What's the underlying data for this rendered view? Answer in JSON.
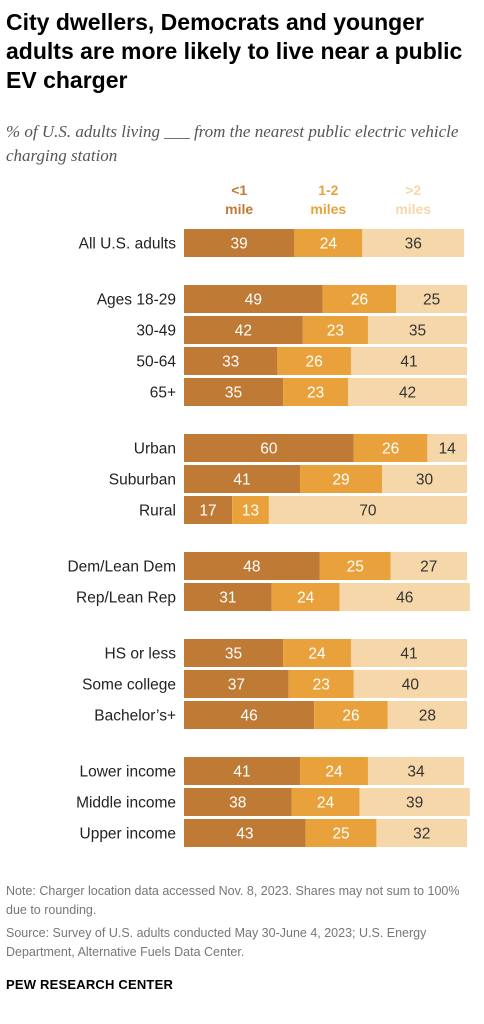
{
  "title": "City dwellers, Democrats and younger adults are more likely to live near a public EV charger",
  "subtitle": "% of U.S. adults living ___ from the nearest public electric vehicle charging station",
  "note": "Note: Charger location data accessed Nov. 8, 2023. Shares may not sum to 100% due to rounding.",
  "source": "Source: Survey of U.S. adults conducted May 30-June 4, 2023; U.S. Energy Department, Alternative Fuels Data Center.",
  "brand": "PEW RESEARCH CENTER",
  "chart_data": {
    "type": "bar",
    "orientation": "horizontal",
    "stacked": true,
    "xlim": [
      0,
      100
    ],
    "grid": false,
    "legend_placement": "top",
    "series": [
      {
        "name": "<1 mile",
        "legend_lines": [
          "<1",
          "mile"
        ],
        "color": "#bf7a35",
        "label_color": "#ffffff"
      },
      {
        "name": "1-2 miles",
        "legend_lines": [
          "1-2",
          "miles"
        ],
        "color": "#e9a23b",
        "label_color": "#ffffff"
      },
      {
        "name": ">2 miles",
        "legend_lines": [
          ">2",
          "miles"
        ],
        "color": "#f6d7a9",
        "label_color": "#333333"
      }
    ],
    "groups": [
      {
        "rows": [
          {
            "label": "All U.S. adults",
            "values": [
              39,
              24,
              36
            ]
          }
        ]
      },
      {
        "rows": [
          {
            "label": "Ages 18-29",
            "values": [
              49,
              26,
              25
            ]
          },
          {
            "label": "30-49",
            "values": [
              42,
              23,
              35
            ]
          },
          {
            "label": "50-64",
            "values": [
              33,
              26,
              41
            ]
          },
          {
            "label": "65+",
            "values": [
              35,
              23,
              42
            ]
          }
        ]
      },
      {
        "rows": [
          {
            "label": "Urban",
            "values": [
              60,
              26,
              14
            ]
          },
          {
            "label": "Suburban",
            "values": [
              41,
              29,
              30
            ]
          },
          {
            "label": "Rural",
            "values": [
              17,
              13,
              70
            ]
          }
        ]
      },
      {
        "rows": [
          {
            "label": "Dem/Lean Dem",
            "values": [
              48,
              25,
              27
            ]
          },
          {
            "label": "Rep/Lean Rep",
            "values": [
              31,
              24,
              46
            ]
          }
        ]
      },
      {
        "rows": [
          {
            "label": "HS or less",
            "values": [
              35,
              24,
              41
            ]
          },
          {
            "label": "Some college",
            "values": [
              37,
              23,
              40
            ]
          },
          {
            "label": "Bachelor’s+",
            "values": [
              46,
              26,
              28
            ]
          }
        ]
      },
      {
        "rows": [
          {
            "label": "Lower income",
            "values": [
              41,
              24,
              34
            ]
          },
          {
            "label": "Middle income",
            "values": [
              38,
              24,
              39
            ]
          },
          {
            "label": "Upper income",
            "values": [
              43,
              25,
              32
            ]
          }
        ]
      }
    ]
  }
}
